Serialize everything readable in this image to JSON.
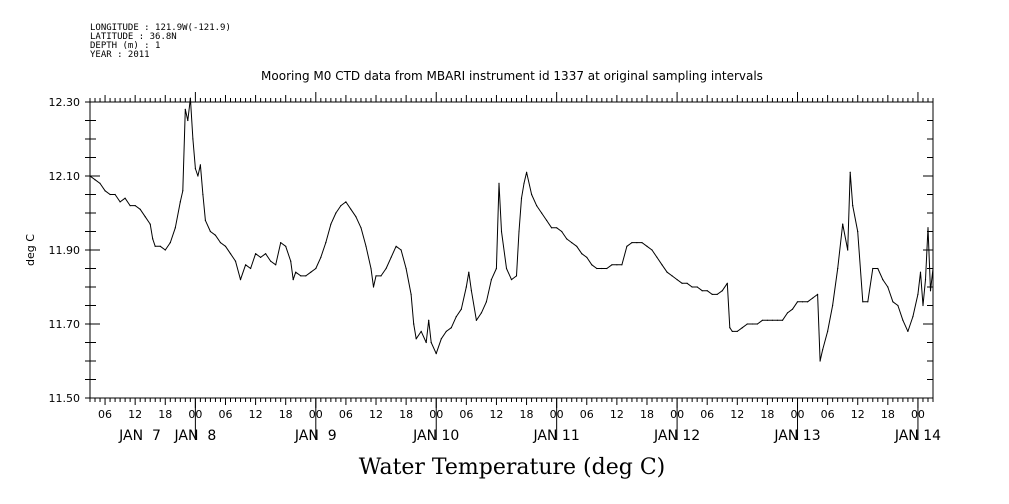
{
  "metadata": {
    "longitude": "LONGITUDE : 121.9W(-121.9)",
    "latitude": "LATITUDE : 36.8N",
    "depth": "DEPTH (m) : 1",
    "year": "YEAR : 2011"
  },
  "chart_data": {
    "type": "line",
    "title": "Mooring M0 CTD data from MBARI instrument id 1337 at original sampling intervals",
    "xlabel": "Water Temperature (deg C)",
    "ylabel": "deg C",
    "ylim": [
      11.5,
      12.3
    ],
    "xlim_hours": [
      3,
      171
    ],
    "y_major_ticks": [
      11.5,
      11.7,
      11.9,
      12.1,
      12.3
    ],
    "y_tick_labels": [
      "11.50",
      "11.70",
      "11.90",
      "12.10",
      "12.30"
    ],
    "hour_ticks": [
      "06",
      "12",
      "18",
      "00",
      "06",
      "12",
      "18",
      "00",
      "06",
      "12",
      "18",
      "00",
      "06",
      "12",
      "18",
      "00",
      "06",
      "12",
      "18",
      "00",
      "06",
      "12",
      "18",
      "00",
      "06",
      "12",
      "18",
      "00"
    ],
    "day_labels": [
      "JAN  7",
      "JAN  8",
      "JAN  9",
      "JAN 10",
      "JAN 11",
      "JAN 12",
      "JAN 13",
      "JAN 14"
    ],
    "series": [
      {
        "name": "Water Temperature",
        "color": "#000000",
        "x_unit": "hours since JAN 7 00:00",
        "points": [
          [
            3.0,
            12.1
          ],
          [
            4.0,
            12.09
          ],
          [
            5.0,
            12.08
          ],
          [
            6.0,
            12.06
          ],
          [
            7.0,
            12.05
          ],
          [
            8.0,
            12.05
          ],
          [
            9.0,
            12.03
          ],
          [
            10.0,
            12.04
          ],
          [
            11.0,
            12.02
          ],
          [
            12.0,
            12.02
          ],
          [
            13.0,
            12.01
          ],
          [
            14.0,
            11.99
          ],
          [
            15.0,
            11.97
          ],
          [
            15.5,
            11.93
          ],
          [
            16.0,
            11.91
          ],
          [
            17.0,
            11.91
          ],
          [
            18.0,
            11.9
          ],
          [
            19.0,
            11.92
          ],
          [
            20.0,
            11.96
          ],
          [
            21.0,
            12.03
          ],
          [
            21.5,
            12.06
          ],
          [
            22.0,
            12.28
          ],
          [
            22.5,
            12.25
          ],
          [
            23.0,
            12.31
          ],
          [
            23.5,
            12.2
          ],
          [
            24.0,
            12.12
          ],
          [
            24.5,
            12.1
          ],
          [
            25.0,
            12.13
          ],
          [
            25.5,
            12.05
          ],
          [
            26.0,
            11.98
          ],
          [
            27.0,
            11.95
          ],
          [
            28.0,
            11.94
          ],
          [
            29.0,
            11.92
          ],
          [
            30.0,
            11.91
          ],
          [
            31.0,
            11.89
          ],
          [
            32.0,
            11.87
          ],
          [
            33.0,
            11.82
          ],
          [
            34.0,
            11.86
          ],
          [
            35.0,
            11.85
          ],
          [
            36.0,
            11.89
          ],
          [
            37.0,
            11.88
          ],
          [
            38.0,
            11.89
          ],
          [
            39.0,
            11.87
          ],
          [
            40.0,
            11.86
          ],
          [
            41.0,
            11.92
          ],
          [
            42.0,
            11.91
          ],
          [
            43.0,
            11.87
          ],
          [
            43.5,
            11.82
          ],
          [
            44.0,
            11.84
          ],
          [
            45.0,
            11.83
          ],
          [
            46.0,
            11.83
          ],
          [
            47.0,
            11.84
          ],
          [
            48.0,
            11.85
          ],
          [
            49.0,
            11.88
          ],
          [
            50.0,
            11.92
          ],
          [
            51.0,
            11.97
          ],
          [
            52.0,
            12.0
          ],
          [
            53.0,
            12.02
          ],
          [
            54.0,
            12.03
          ],
          [
            55.0,
            12.01
          ],
          [
            56.0,
            11.99
          ],
          [
            57.0,
            11.96
          ],
          [
            58.0,
            11.91
          ],
          [
            59.0,
            11.85
          ],
          [
            59.5,
            11.8
          ],
          [
            60.0,
            11.83
          ],
          [
            61.0,
            11.83
          ],
          [
            62.0,
            11.85
          ],
          [
            63.0,
            11.88
          ],
          [
            64.0,
            11.91
          ],
          [
            65.0,
            11.9
          ],
          [
            66.0,
            11.85
          ],
          [
            67.0,
            11.78
          ],
          [
            67.5,
            11.7
          ],
          [
            68.0,
            11.66
          ],
          [
            69.0,
            11.68
          ],
          [
            70.0,
            11.65
          ],
          [
            70.5,
            11.71
          ],
          [
            71.0,
            11.65
          ],
          [
            72.0,
            11.62
          ],
          [
            73.0,
            11.66
          ],
          [
            74.0,
            11.68
          ],
          [
            75.0,
            11.69
          ],
          [
            76.0,
            11.72
          ],
          [
            77.0,
            11.74
          ],
          [
            78.0,
            11.8
          ],
          [
            78.5,
            11.84
          ],
          [
            79.0,
            11.79
          ],
          [
            80.0,
            11.71
          ],
          [
            81.0,
            11.73
          ],
          [
            82.0,
            11.76
          ],
          [
            83.0,
            11.82
          ],
          [
            84.0,
            11.85
          ],
          [
            84.5,
            12.08
          ],
          [
            85.0,
            11.95
          ],
          [
            86.0,
            11.85
          ],
          [
            87.0,
            11.82
          ],
          [
            88.0,
            11.83
          ],
          [
            88.5,
            11.95
          ],
          [
            89.0,
            12.04
          ],
          [
            89.5,
            12.08
          ],
          [
            90.0,
            12.11
          ],
          [
            91.0,
            12.05
          ],
          [
            92.0,
            12.02
          ],
          [
            93.0,
            12.0
          ],
          [
            94.0,
            11.98
          ],
          [
            95.0,
            11.96
          ],
          [
            96.0,
            11.96
          ],
          [
            97.0,
            11.95
          ],
          [
            98.0,
            11.93
          ],
          [
            99.0,
            11.92
          ],
          [
            100.0,
            11.91
          ],
          [
            101.0,
            11.89
          ],
          [
            102.0,
            11.88
          ],
          [
            103.0,
            11.86
          ],
          [
            104.0,
            11.85
          ],
          [
            105.0,
            11.85
          ],
          [
            106.0,
            11.85
          ],
          [
            107.0,
            11.86
          ],
          [
            108.0,
            11.86
          ],
          [
            109.0,
            11.86
          ],
          [
            110.0,
            11.91
          ],
          [
            111.0,
            11.92
          ],
          [
            112.0,
            11.92
          ],
          [
            113.0,
            11.92
          ],
          [
            114.0,
            11.91
          ],
          [
            115.0,
            11.9
          ],
          [
            116.0,
            11.88
          ],
          [
            117.0,
            11.86
          ],
          [
            118.0,
            11.84
          ],
          [
            119.0,
            11.83
          ],
          [
            120.0,
            11.82
          ],
          [
            121.0,
            11.81
          ],
          [
            122.0,
            11.81
          ],
          [
            123.0,
            11.8
          ],
          [
            124.0,
            11.8
          ],
          [
            125.0,
            11.79
          ],
          [
            126.0,
            11.79
          ],
          [
            127.0,
            11.78
          ],
          [
            128.0,
            11.78
          ],
          [
            129.0,
            11.79
          ],
          [
            130.0,
            11.81
          ],
          [
            130.5,
            11.69
          ],
          [
            131.0,
            11.68
          ],
          [
            132.0,
            11.68
          ],
          [
            133.0,
            11.69
          ],
          [
            134.0,
            11.7
          ],
          [
            135.0,
            11.7
          ],
          [
            136.0,
            11.7
          ],
          [
            137.0,
            11.71
          ],
          [
            138.0,
            11.71
          ],
          [
            139.0,
            11.71
          ],
          [
            140.0,
            11.71
          ],
          [
            141.0,
            11.71
          ],
          [
            142.0,
            11.73
          ],
          [
            143.0,
            11.74
          ],
          [
            144.0,
            11.76
          ],
          [
            145.0,
            11.76
          ],
          [
            146.0,
            11.76
          ],
          [
            147.0,
            11.77
          ],
          [
            148.0,
            11.78
          ],
          [
            148.5,
            11.6
          ],
          [
            149.0,
            11.63
          ],
          [
            150.0,
            11.68
          ],
          [
            151.0,
            11.75
          ],
          [
            152.0,
            11.85
          ],
          [
            153.0,
            11.97
          ],
          [
            154.0,
            11.9
          ],
          [
            154.5,
            12.11
          ],
          [
            155.0,
            12.02
          ],
          [
            156.0,
            11.95
          ],
          [
            157.0,
            11.76
          ],
          [
            158.0,
            11.76
          ],
          [
            159.0,
            11.85
          ],
          [
            160.0,
            11.85
          ],
          [
            161.0,
            11.82
          ],
          [
            162.0,
            11.8
          ],
          [
            163.0,
            11.76
          ],
          [
            164.0,
            11.75
          ],
          [
            165.0,
            11.71
          ],
          [
            166.0,
            11.68
          ],
          [
            167.0,
            11.72
          ],
          [
            168.0,
            11.78
          ],
          [
            168.5,
            11.84
          ],
          [
            169.0,
            11.75
          ],
          [
            169.5,
            11.82
          ],
          [
            170.0,
            11.96
          ],
          [
            170.5,
            11.79
          ],
          [
            171.0,
            11.85
          ]
        ]
      }
    ]
  }
}
